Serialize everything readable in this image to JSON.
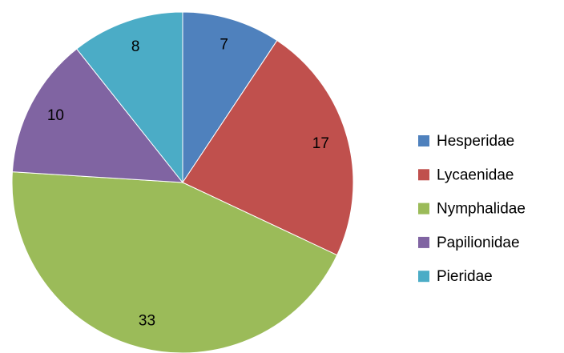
{
  "chart_data": {
    "type": "pie",
    "categories": [
      "Hesperidae",
      "Lycaenidae",
      "Nymphalidae",
      "Papilionidae",
      "Pieridae"
    ],
    "values": [
      7,
      17,
      33,
      10,
      8
    ],
    "colors": [
      "#4f81bd",
      "#c0504d",
      "#9bbb59",
      "#8064a2",
      "#4bacc6"
    ],
    "legend": "right"
  }
}
